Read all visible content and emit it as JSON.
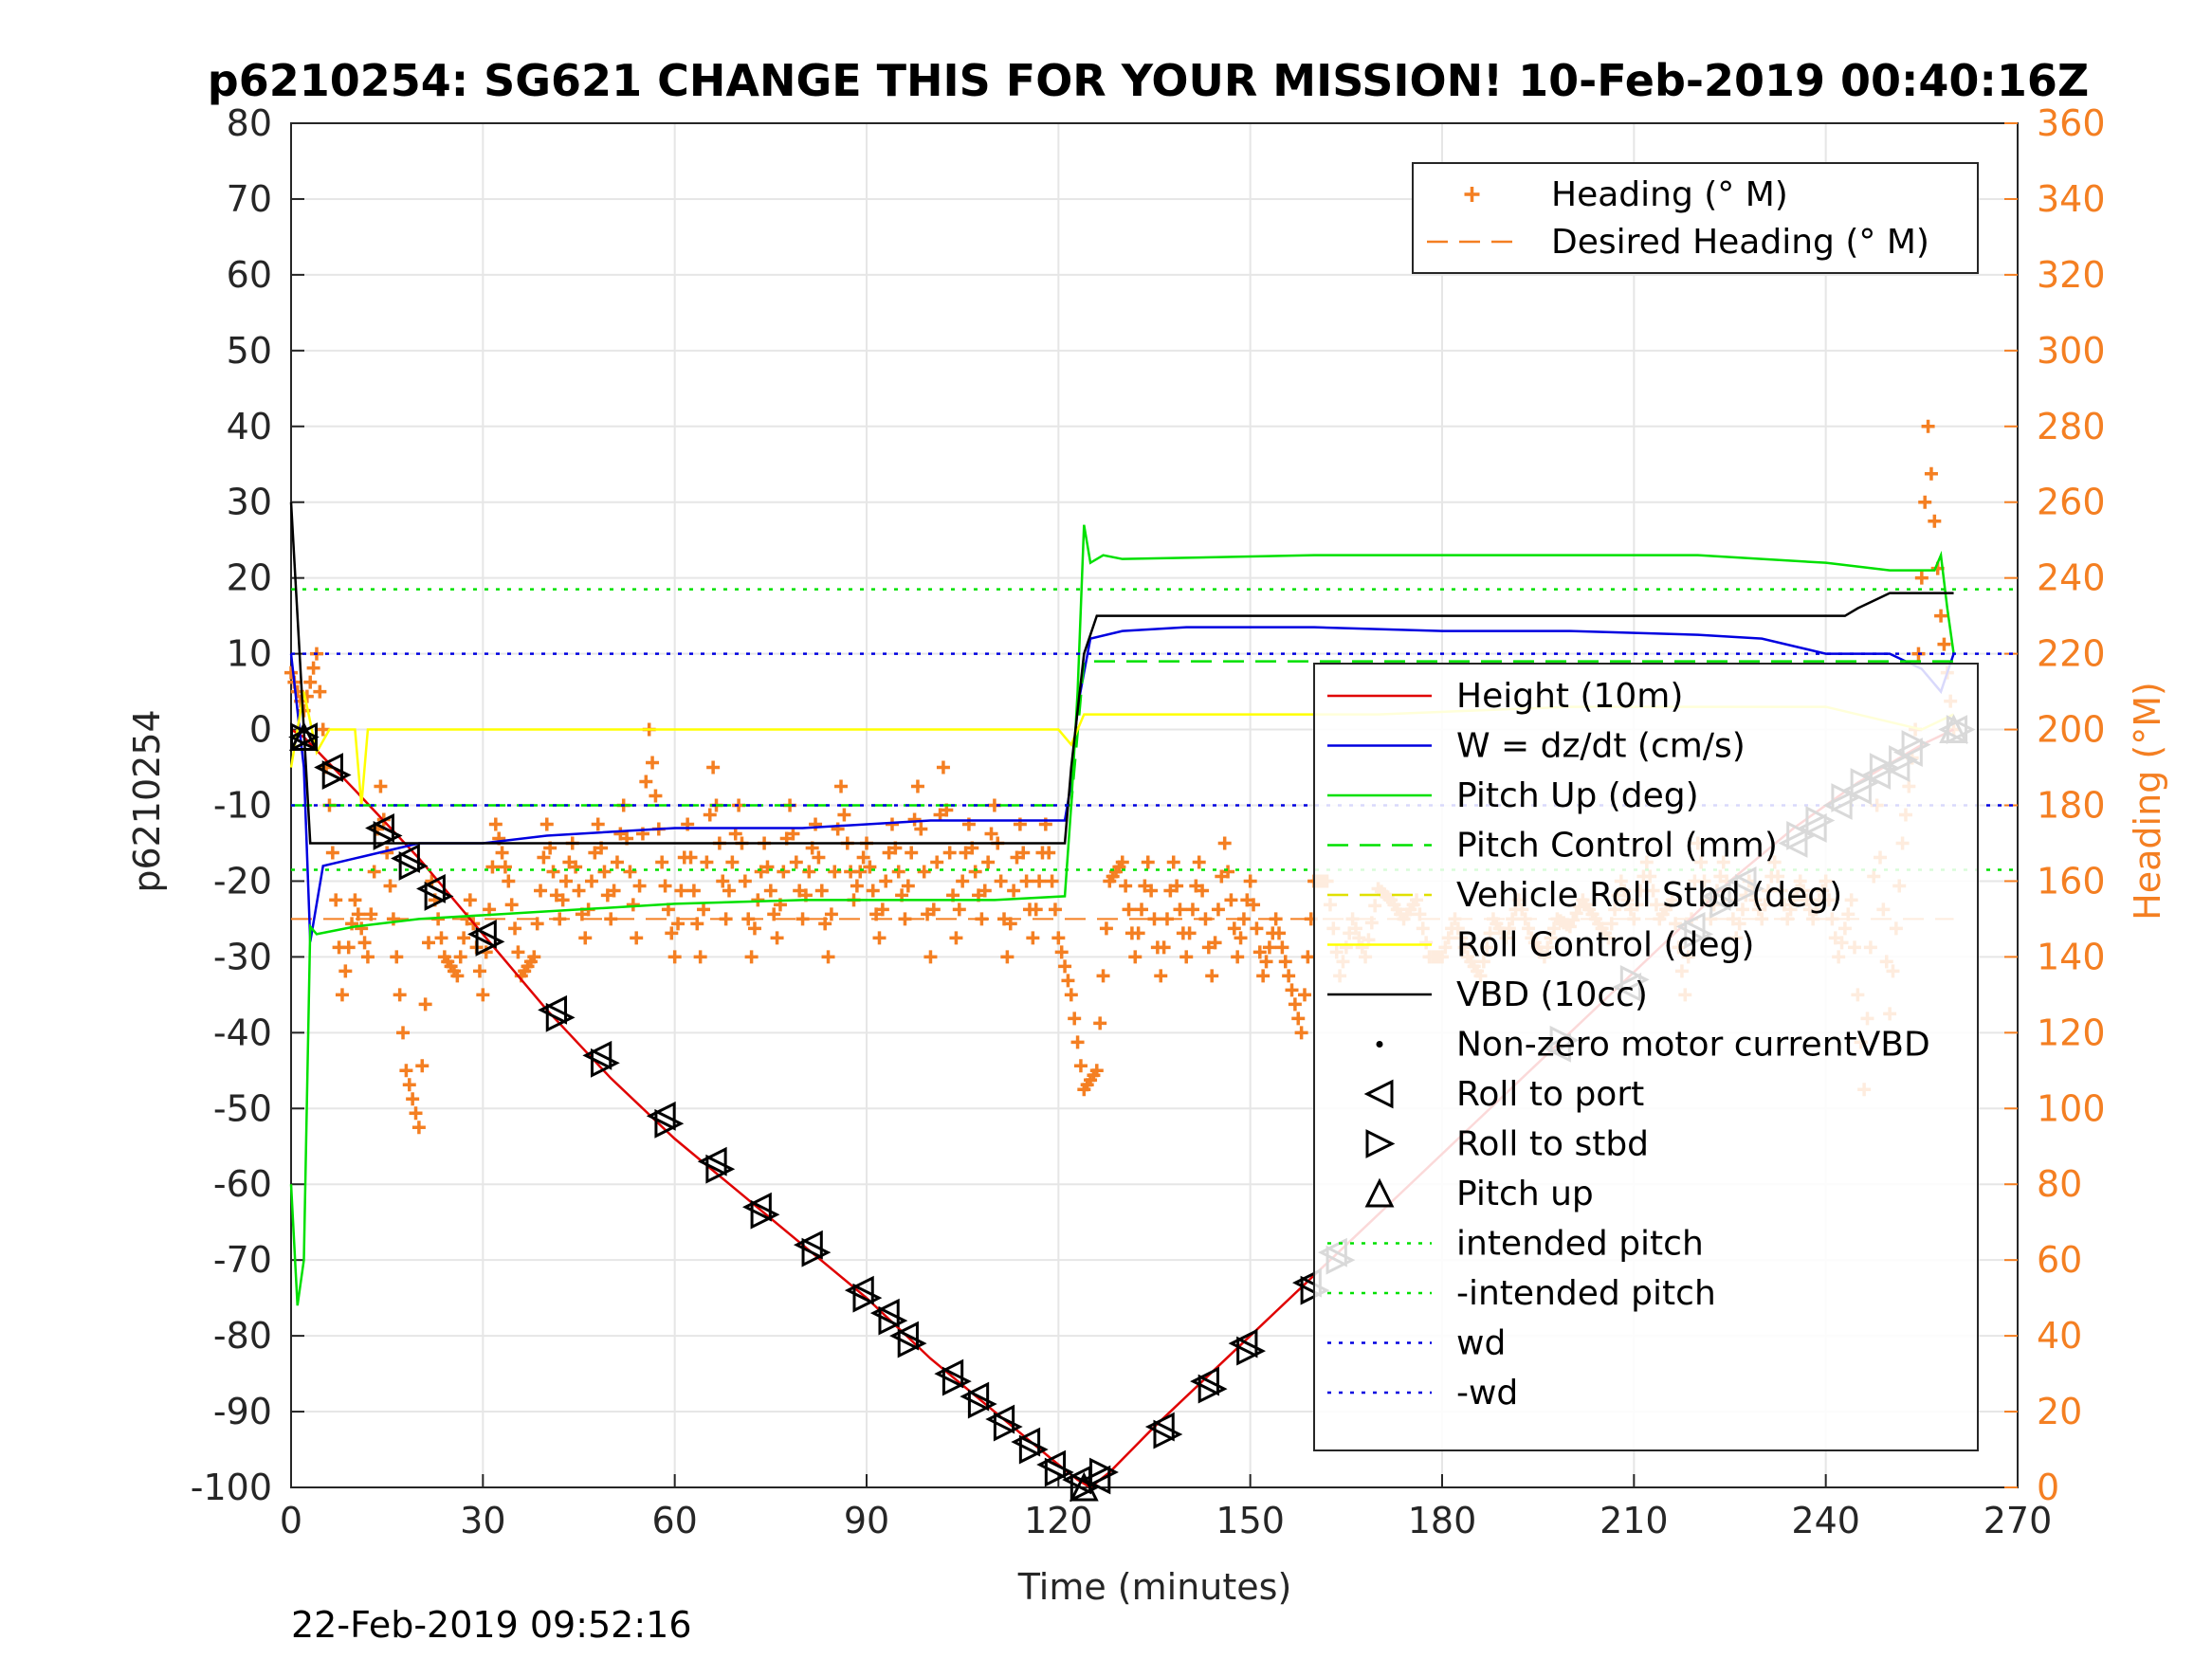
{
  "chart_data": {
    "type": "line",
    "title": "p6210254: SG621 CHANGE THIS FOR YOUR MISSION! 10-Feb-2019 00:40:16Z",
    "xlabel": "Time (minutes)",
    "ylabel": "p6210254",
    "ylabel_right": "Heading (°M)",
    "xlim": [
      0,
      270
    ],
    "ylim": [
      -100,
      80
    ],
    "ylim_right": [
      0,
      360
    ],
    "xticks": [
      "0",
      "30",
      "60",
      "90",
      "120",
      "150",
      "180",
      "210",
      "240",
      "270"
    ],
    "yticks": [
      "80",
      "70",
      "60",
      "50",
      "40",
      "30",
      "20",
      "10",
      "0",
      "-10",
      "-20",
      "-30",
      "-40",
      "-50",
      "-60",
      "-70",
      "-80",
      "-90",
      "-100"
    ],
    "yticks_right": [
      "360",
      "340",
      "320",
      "300",
      "280",
      "260",
      "240",
      "220",
      "200",
      "180",
      "160",
      "140",
      "120",
      "100",
      "80",
      "60",
      "40",
      "20",
      "0"
    ],
    "grid": true,
    "timestamp": "22-Feb-2019 09:52:16",
    "legend_right": [
      {
        "label": "Heading (° M)",
        "color": "#f47f22",
        "style": "plus"
      },
      {
        "label": "Desired Heading (° M)",
        "color": "#f47f22",
        "style": "dash"
      }
    ],
    "legend_main": [
      {
        "label": "Height (10m)",
        "color": "#e00000",
        "style": "solid"
      },
      {
        "label": "W = dz/dt (cm/s)",
        "color": "#0000e0",
        "style": "solid"
      },
      {
        "label": "Pitch Up (deg)",
        "color": "#00e000",
        "style": "solid"
      },
      {
        "label": "Pitch Control (mm)",
        "color": "#00e000",
        "style": "dash"
      },
      {
        "label": "Vehicle Roll Stbd (deg)",
        "color": "#e0e000",
        "style": "dash"
      },
      {
        "label": "Roll Control (deg)",
        "color": "#ffff00",
        "style": "solid"
      },
      {
        "label": "VBD (10cc)",
        "color": "#000000",
        "style": "solid"
      },
      {
        "label": "Non-zero motor currentVBD",
        "color": "#000000",
        "style": "dot"
      },
      {
        "label": "Roll to port",
        "color": "#000000",
        "style": "tri-left"
      },
      {
        "label": "Roll to stbd",
        "color": "#000000",
        "style": "tri-right"
      },
      {
        "label": "Pitch up",
        "color": "#000000",
        "style": "tri-up"
      },
      {
        "label": "intended pitch",
        "color": "#00e000",
        "style": "dotted"
      },
      {
        "label": "-intended pitch",
        "color": "#00e000",
        "style": "dotted"
      },
      {
        "label": "wd",
        "color": "#0000e0",
        "style": "dotted"
      },
      {
        "label": "-wd",
        "color": "#0000e0",
        "style": "dotted"
      }
    ],
    "series": [
      {
        "name": "Height (10m)",
        "color": "#e00000",
        "x": [
          0,
          2,
          10,
          20,
          30,
          40,
          50,
          60,
          70,
          80,
          90,
          100,
          110,
          120,
          123,
          125,
          128,
          135,
          145,
          155,
          165,
          175,
          185,
          195,
          205,
          215,
          225,
          235,
          245,
          255,
          260
        ],
        "y": [
          0,
          -1,
          -8,
          -17,
          -27,
          -37,
          -46,
          -54,
          -61,
          -68,
          -75,
          -83,
          -90,
          -97,
          -99,
          -100,
          -98,
          -92,
          -84,
          -76,
          -68,
          -60,
          -52,
          -44,
          -36,
          -28,
          -20,
          -13,
          -7,
          -2,
          0
        ]
      },
      {
        "name": "W = dz/dt (cm/s)",
        "color": "#0000e0",
        "x": [
          0,
          2,
          3,
          5,
          10,
          20,
          30,
          40,
          60,
          80,
          100,
          110,
          121,
          122,
          123,
          125,
          130,
          140,
          160,
          180,
          200,
          220,
          230,
          240,
          250,
          255,
          258,
          260
        ],
        "y": [
          10,
          -5,
          -28,
          -18,
          -17,
          -15,
          -15,
          -14,
          -13,
          -13,
          -12,
          -12,
          -12,
          -7,
          3,
          12,
          13,
          13.5,
          13.5,
          13,
          13,
          12.5,
          12,
          10,
          10,
          8,
          5,
          10
        ]
      },
      {
        "name": "Pitch Up (deg)",
        "color": "#00e000",
        "x": [
          0,
          1,
          2,
          3,
          4,
          10,
          20,
          40,
          60,
          80,
          100,
          110,
          121,
          122,
          123,
          124,
          125,
          127,
          130,
          160,
          190,
          220,
          240,
          250,
          257,
          258,
          259,
          260
        ],
        "y": [
          -60,
          -76,
          -70,
          -26,
          -27,
          -26,
          -25,
          -24,
          -23,
          -22.5,
          -22.5,
          -22.5,
          -22,
          -10,
          5,
          27,
          22,
          23,
          22.5,
          23,
          23,
          23,
          22,
          21,
          21,
          23,
          16,
          10
        ]
      },
      {
        "name": "Pitch Control (mm)",
        "color": "#00e000",
        "dash": "22,12",
        "x": [
          0,
          4,
          122,
          124,
          260
        ],
        "y": [
          -10,
          -10,
          -10,
          9,
          9
        ]
      },
      {
        "name": "Roll Control (deg)",
        "color": "#ffff00",
        "x": [
          0,
          2,
          4,
          6,
          8,
          10,
          11,
          12,
          13,
          20,
          30,
          40,
          50,
          60,
          70,
          80,
          90,
          100,
          110,
          120,
          122,
          124,
          130,
          150,
          170,
          200,
          220,
          240,
          255,
          260
        ],
        "y": [
          -5,
          5,
          -3,
          0,
          0,
          0,
          -10,
          0,
          0,
          0,
          0,
          0,
          0,
          0,
          0,
          0,
          0,
          0,
          0,
          0,
          -2,
          2,
          2,
          2,
          2,
          3,
          3,
          3,
          0,
          2
        ]
      },
      {
        "name": "VBD (10cc)",
        "color": "#000000",
        "x": [
          0,
          1,
          2,
          3,
          30,
          60,
          90,
          121,
          122,
          124,
          126,
          150,
          200,
          243,
          245,
          250,
          260
        ],
        "y": [
          30,
          15,
          0,
          -15,
          -15,
          -15,
          -15,
          -15,
          -5,
          10,
          15,
          15,
          15,
          15,
          16,
          18,
          18
        ]
      },
      {
        "name": "intended pitch",
        "color": "#00e000",
        "dash": "4,8",
        "x": [
          0,
          270
        ],
        "y": [
          18.5,
          18.5
        ]
      },
      {
        "name": "-intended pitch",
        "color": "#00e000",
        "dash": "4,8",
        "x": [
          0,
          270
        ],
        "y": [
          -18.5,
          -18.5
        ]
      },
      {
        "name": "wd",
        "color": "#0000e0",
        "dash": "4,8",
        "x": [
          0,
          270
        ],
        "y": [
          10,
          10
        ]
      },
      {
        "name": "-wd",
        "color": "#0000e0",
        "dash": "4,8",
        "x": [
          0,
          270
        ],
        "y": [
          -10,
          -10
        ]
      }
    ],
    "heading_series": {
      "name": "Heading (° M)",
      "color": "#f47f22",
      "axis": "right",
      "x": [
        0,
        2,
        4,
        6,
        8,
        10,
        12,
        14,
        16,
        18,
        20,
        22,
        24,
        26,
        28,
        30,
        32,
        34,
        36,
        38,
        40,
        42,
        44,
        46,
        48,
        50,
        52,
        54,
        56,
        58,
        60,
        62,
        64,
        66,
        68,
        70,
        72,
        74,
        76,
        78,
        80,
        82,
        84,
        86,
        88,
        90,
        92,
        94,
        96,
        98,
        100,
        102,
        104,
        106,
        108,
        110,
        112,
        114,
        116,
        118,
        120,
        122,
        124,
        126,
        128,
        130,
        132,
        134,
        136,
        138,
        140,
        142,
        144,
        146,
        148,
        150,
        152,
        154,
        156,
        158,
        160,
        162,
        164,
        166,
        168,
        170,
        172,
        174,
        176,
        178,
        180,
        182,
        184,
        186,
        188,
        190,
        192,
        194,
        196,
        198,
        200,
        202,
        204,
        206,
        208,
        210,
        212,
        214,
        216,
        218,
        220,
        222,
        224,
        226,
        228,
        230,
        232,
        234,
        236,
        238,
        240,
        242,
        244,
        246,
        248,
        250,
        252,
        254,
        256,
        258,
        260
      ],
      "y": [
        215,
        205,
        220,
        180,
        130,
        155,
        140,
        185,
        150,
        110,
        95,
        160,
        140,
        135,
        155,
        130,
        175,
        160,
        135,
        140,
        175,
        150,
        170,
        145,
        175,
        150,
        180,
        145,
        200,
        165,
        140,
        175,
        140,
        190,
        150,
        180,
        140,
        170,
        145,
        180,
        150,
        175,
        140,
        185,
        155,
        170,
        145,
        175,
        150,
        185,
        140,
        190,
        145,
        175,
        150,
        180,
        140,
        175,
        145,
        175,
        145,
        130,
        105,
        110,
        160,
        165,
        140,
        165,
        135,
        165,
        140,
        165,
        135,
        170,
        140,
        160,
        135,
        150,
        135,
        120,
        160,
        160,
        135,
        150,
        140,
        158,
        155,
        150,
        155,
        140,
        140,
        150,
        140,
        135,
        150,
        145,
        155,
        145,
        140,
        150,
        148,
        155,
        150,
        145,
        160,
        150,
        165,
        150,
        155,
        130,
        170,
        150,
        165,
        145,
        160,
        150,
        165,
        150,
        160,
        150,
        160,
        140,
        155,
        105,
        180,
        125,
        170,
        200,
        280,
        230,
        200
      ],
      "scatter_style": "plus"
    },
    "desired_heading": {
      "name": "Desired Heading (° M)",
      "color": "#f47f22",
      "x": [
        0,
        260
      ],
      "y": [
        150,
        150
      ]
    },
    "markers": {
      "roll_port": {
        "x": [
          2,
          6,
          14,
          18,
          22,
          30,
          41,
          48,
          58,
          66,
          73,
          81,
          89,
          93,
          96,
          103,
          107,
          111,
          115,
          119,
          123,
          126,
          136,
          143,
          149,
          159,
          163,
          198,
          209,
          219,
          223,
          227,
          235,
          238,
          242,
          245,
          248,
          251,
          253,
          260
        ],
        "y": [
          -1,
          -5,
          -13,
          -17,
          -21,
          -27,
          -37,
          -43,
          -51,
          -57,
          -63,
          -68,
          -74,
          -77,
          -80,
          -85,
          -88,
          -91,
          -94,
          -97,
          -99,
          -99,
          -92,
          -86,
          -81,
          -73,
          -69,
          -42,
          -34,
          -26,
          -22,
          -20,
          -15,
          -13,
          -10,
          -8,
          -6,
          -5,
          -3,
          0
        ]
      },
      "roll_stbd": {
        "x": [
          2,
          7,
          15,
          19,
          23,
          31,
          42,
          49,
          59,
          67,
          74,
          82,
          90,
          94,
          97,
          104,
          108,
          112,
          116,
          120,
          124,
          127,
          137,
          144,
          150,
          160,
          164,
          199,
          210,
          220,
          224,
          228,
          236,
          239,
          243,
          246,
          249,
          252,
          254,
          261
        ],
        "y": [
          -1,
          -6,
          -14,
          -18,
          -22,
          -28,
          -38,
          -44,
          -52,
          -58,
          -64,
          -69,
          -75,
          -78,
          -81,
          -86,
          -89,
          -92,
          -95,
          -98,
          -100,
          -98,
          -93,
          -87,
          -82,
          -74,
          -70,
          -41,
          -33,
          -27,
          -23,
          -21,
          -14,
          -12,
          -9,
          -7,
          -5,
          -4,
          -2,
          0
        ]
      },
      "pitch_up": {
        "x": [
          2,
          124,
          260
        ],
        "y": [
          -1,
          -100,
          0
        ]
      }
    }
  }
}
